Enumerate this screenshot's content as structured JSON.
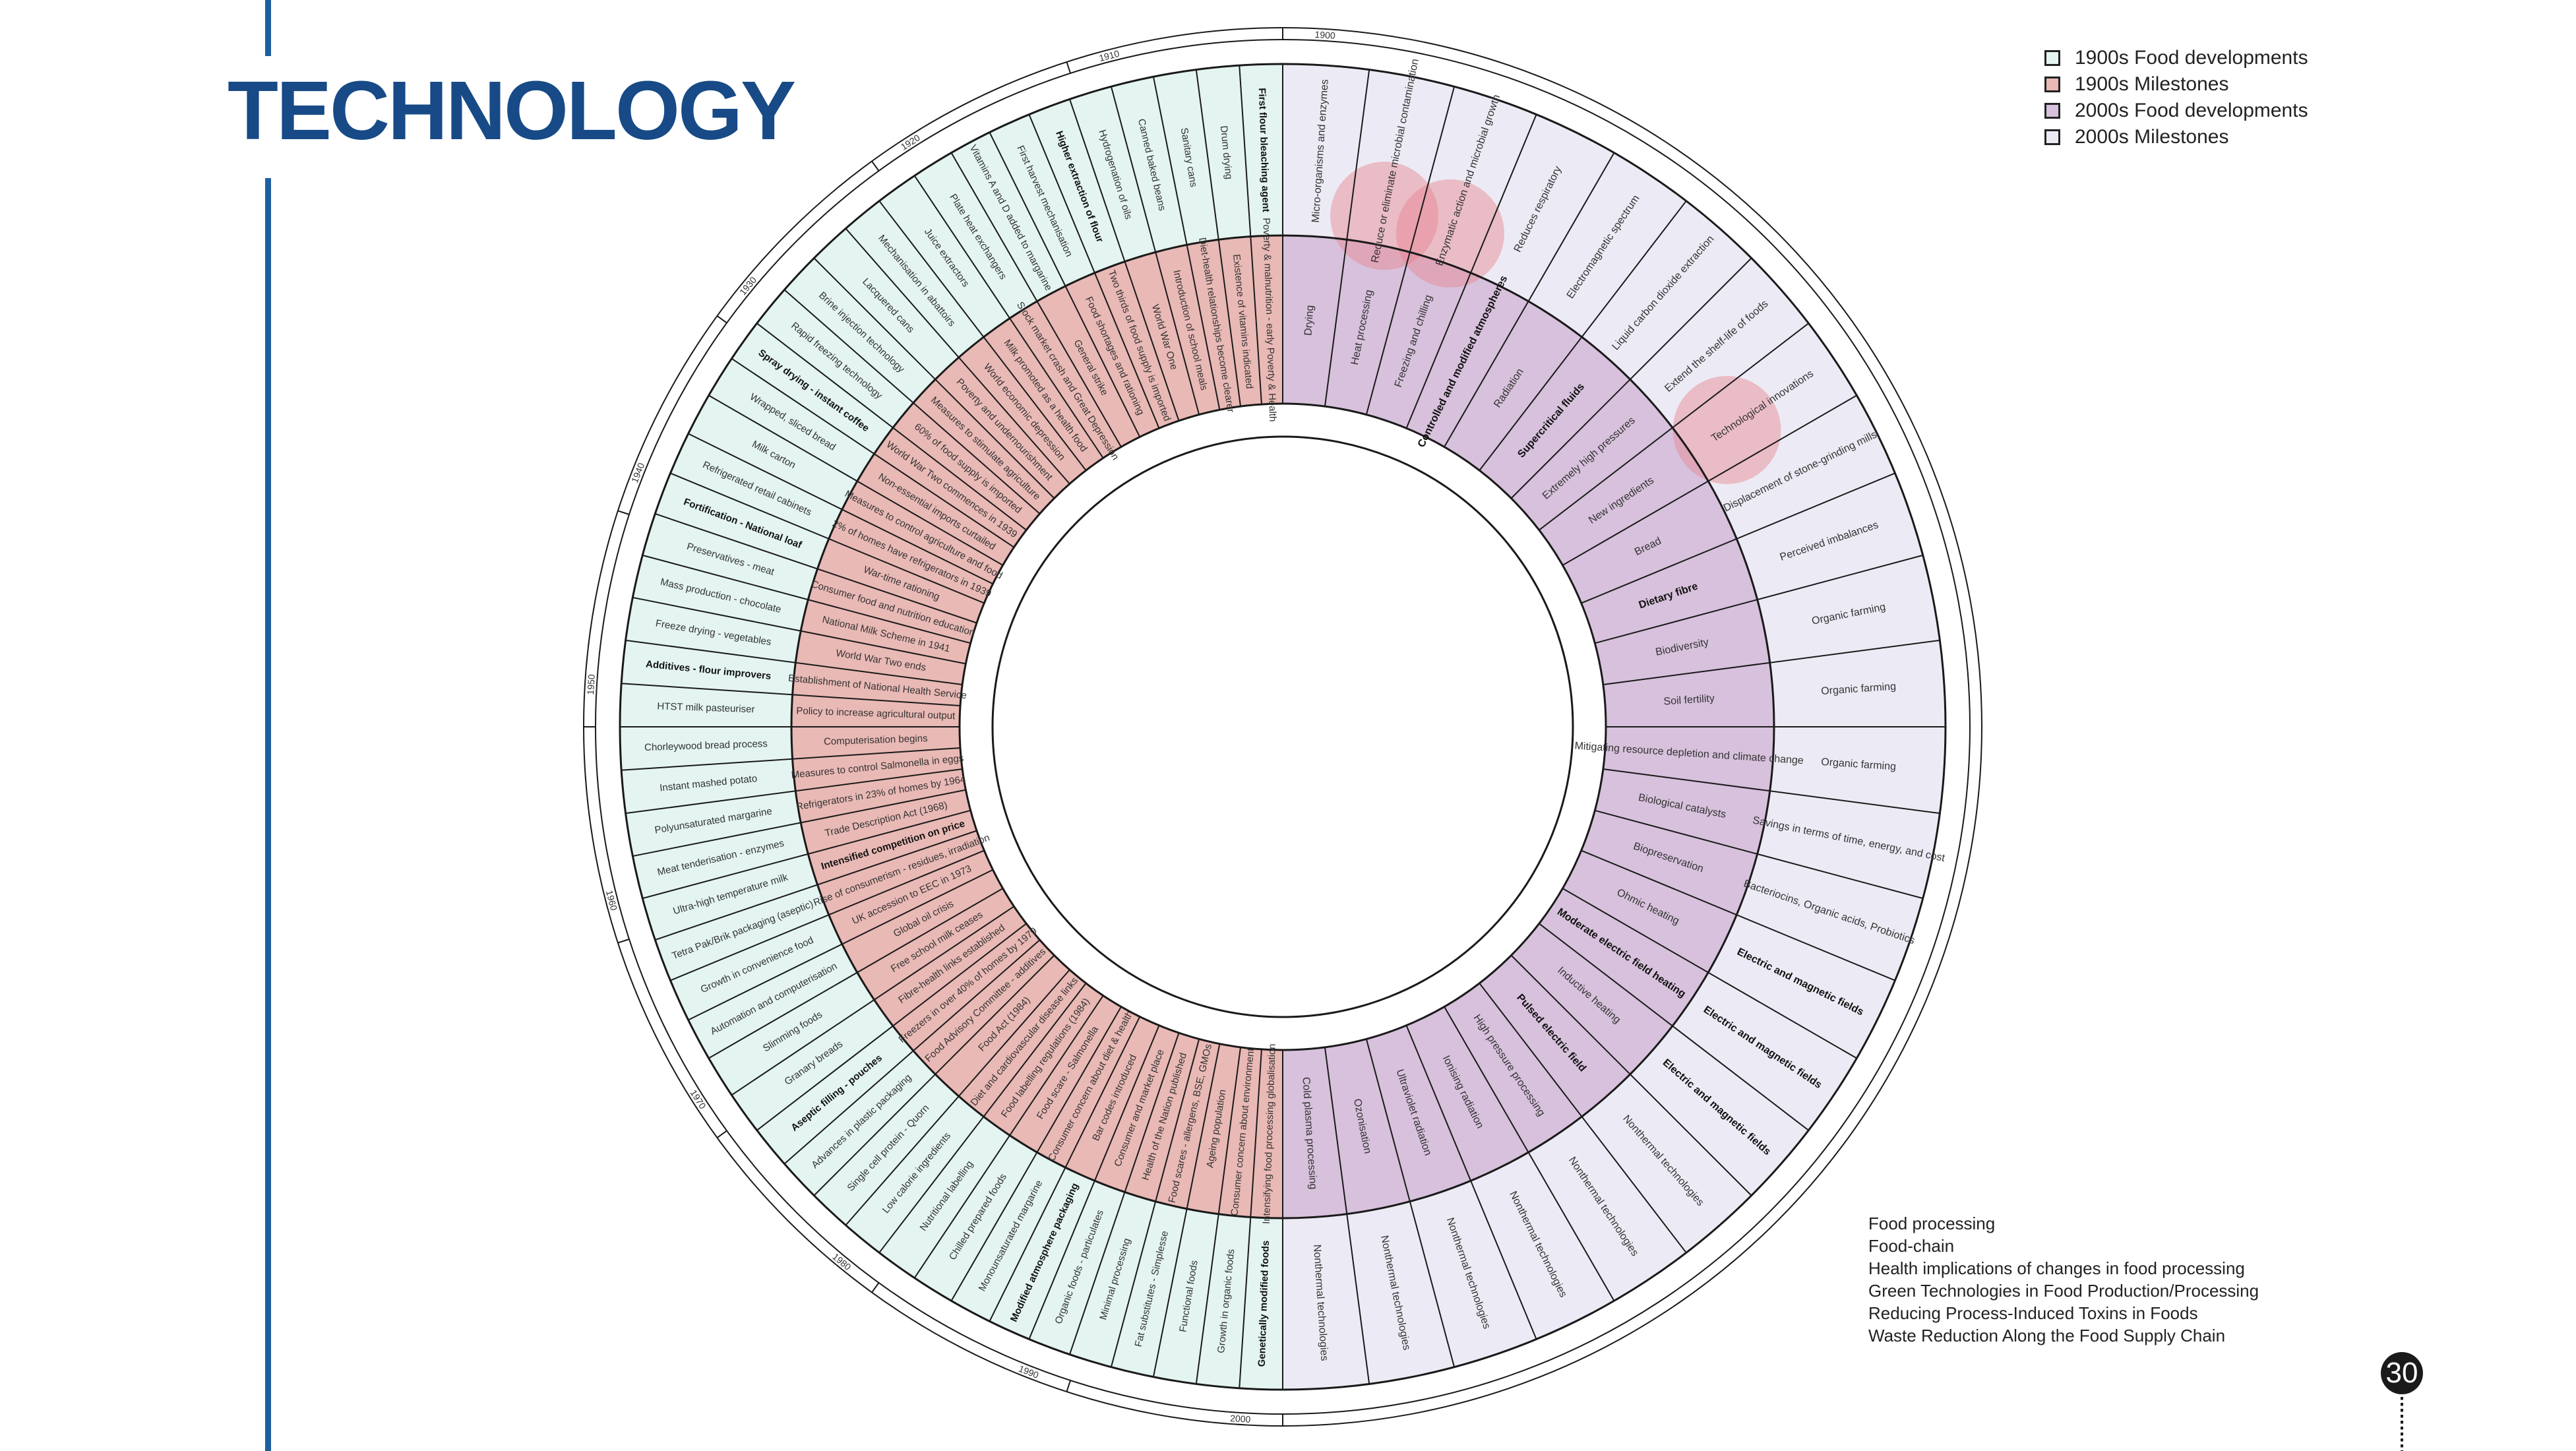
{
  "header": {
    "title": "TECHNOLOGY"
  },
  "legend": {
    "items": [
      {
        "label": "1900s Food developments",
        "color": "#e3f4f1"
      },
      {
        "label": "1900s Milestones",
        "color": "#e9b9b5"
      },
      {
        "label": "2000s Food developments",
        "color": "#d7c1dc"
      },
      {
        "label": "2000s Milestones",
        "color": "#ecebf5"
      }
    ]
  },
  "topics": [
    "Food processing",
    "Food-chain",
    "Health implications of changes in food processing",
    "Green Technologies in Food Production/Processing",
    "Reducing Process-Induced Toxins in Foods",
    "Waste Reduction Along the Food Supply Chain"
  ],
  "page_number": "30",
  "wheel": {
    "colors": {
      "dev1900": "#e3f4f1",
      "mile1900": "#e9b9b5",
      "dev2000": "#d7c1dc",
      "mile2000": "#ecebf5",
      "highlight": "#e8828f",
      "line": "#1a1a1a"
    },
    "decades": [
      "1900",
      "1910",
      "1920",
      "1930",
      "1940",
      "1950",
      "1960",
      "1970",
      "1980",
      "1990",
      "2000"
    ],
    "left_outer": [
      {
        "text": "First flour bleaching agent",
        "bold": true
      },
      {
        "text": "Drum drying"
      },
      {
        "text": "Sanitary cans"
      },
      {
        "text": "Canned baked beans"
      },
      {
        "text": "Hydrogenation of oils"
      },
      {
        "text": "Higher extraction of flour",
        "bold": true
      },
      {
        "text": "First harvest mechanisation"
      },
      {
        "text": "Vitamins A and D added to margarine"
      },
      {
        "text": "Plate heat exchangers"
      },
      {
        "text": "Juice extractors"
      },
      {
        "text": "Mechanisation in abattoirs"
      },
      {
        "text": "Lacquered cans"
      },
      {
        "text": "Brine injection technology"
      },
      {
        "text": "Rapid freezing technology"
      },
      {
        "text": "Spray drying - instant coffee",
        "bold": true
      },
      {
        "text": "Wrapped, sliced bread"
      },
      {
        "text": "Milk carton"
      },
      {
        "text": "Refrigerated retail cabinets"
      },
      {
        "text": "Fortification - National loaf",
        "bold": true
      },
      {
        "text": "Preservatives - meat"
      },
      {
        "text": "Mass production - chocolate"
      },
      {
        "text": "Freeze drying - vegetables"
      },
      {
        "text": "Additives - flour improvers",
        "bold": true
      },
      {
        "text": "HTST milk pasteuriser"
      },
      {
        "text": "Chorleywood bread process"
      },
      {
        "text": "Instant mashed potato"
      },
      {
        "text": "Polyunsaturated margarine"
      },
      {
        "text": "Meat tenderisation - enzymes"
      },
      {
        "text": "Ultra-high temperature milk"
      },
      {
        "text": "Tetra Pak/Brik packaging (aseptic)"
      },
      {
        "text": "Growth in convenience food"
      },
      {
        "text": "Automation and computerisation"
      },
      {
        "text": "Slimming foods"
      },
      {
        "text": "Granary breads"
      },
      {
        "text": "Aseptic filling - pouches",
        "bold": true
      },
      {
        "text": "Advances in plastic packaging"
      },
      {
        "text": "Single cell protein - Quorn"
      },
      {
        "text": "Low calorie ingredients"
      },
      {
        "text": "Nutritional labelling"
      },
      {
        "text": "Chilled prepared foods"
      },
      {
        "text": "Monounsaturated margarine"
      },
      {
        "text": "Modified atmosphere packaging",
        "bold": true
      },
      {
        "text": "Organic foods - particulates"
      },
      {
        "text": "Minimal processing"
      },
      {
        "text": "Fat substitutes - Simplesse"
      },
      {
        "text": "Functional foods"
      },
      {
        "text": "Growth in organic foods"
      },
      {
        "text": "Genetically modified foods",
        "bold": true
      }
    ],
    "left_inner": [
      {
        "text": "Poverty & malnutrition - early Poverty & Health"
      },
      {
        "text": "Existence of vitamins indicated"
      },
      {
        "text": "Diet-health relationships become clearer"
      },
      {
        "text": "Introduction of school meals"
      },
      {
        "text": "World War One"
      },
      {
        "text": "Two thirds of food supply is imported"
      },
      {
        "text": "Food shortages and rationing"
      },
      {
        "text": "General strike"
      },
      {
        "text": "Stock market crash and Great Depression"
      },
      {
        "text": "Milk promoted as a health food"
      },
      {
        "text": "World economic depression"
      },
      {
        "text": "Poverty and undernourishment"
      },
      {
        "text": "Measures to stimulate agriculture"
      },
      {
        "text": "60% of food supply is imported"
      },
      {
        "text": "World War Two commences in 1939"
      },
      {
        "text": "Non-essential imports curtailed"
      },
      {
        "text": "Measures to control agriculture and food"
      },
      {
        "text": "2% of homes have refrigerators in 1939"
      },
      {
        "text": "War-time rationing"
      },
      {
        "text": "Consumer food and nutrition education"
      },
      {
        "text": "National Milk Scheme in 1941"
      },
      {
        "text": "World War Two ends"
      },
      {
        "text": "Establishment of National Health Service"
      },
      {
        "text": "Policy to increase agricultural output"
      },
      {
        "text": "Computerisation begins"
      },
      {
        "text": "Measures to control Salmonella in eggs"
      },
      {
        "text": "Refrigerators in 23% of homes by 1964"
      },
      {
        "text": "Trade Description Act (1968)"
      },
      {
        "text": "Intensified competition on price",
        "bold": true
      },
      {
        "text": "Rise of consumerism - residues, irradiation"
      },
      {
        "text": "UK accession to EEC in 1973"
      },
      {
        "text": "Global oil crisis"
      },
      {
        "text": "Free school milk ceases"
      },
      {
        "text": "Fibre-health links established"
      },
      {
        "text": "Freezers in over 40% of homes by 1979"
      },
      {
        "text": "Food Advisory Committee - additives"
      },
      {
        "text": "Food Act (1984)"
      },
      {
        "text": "Diet and cardiovascular disease links"
      },
      {
        "text": "Food labelling regulations (1984)"
      },
      {
        "text": "Food scare - Salmonella"
      },
      {
        "text": "Consumer concern about diet & health"
      },
      {
        "text": "Bar codes introduced"
      },
      {
        "text": "Consumer and market place"
      },
      {
        "text": "Health of the Nation published"
      },
      {
        "text": "Food scares - allergens, BSE, GMOs"
      },
      {
        "text": "Ageing population"
      },
      {
        "text": "Consumer concern about environment"
      },
      {
        "text": "Intensifying food processing globalisation"
      }
    ],
    "right_inner": [
      {
        "text": "Drying"
      },
      {
        "text": "Heat processing"
      },
      {
        "text": "Freezing and chilling"
      },
      {
        "text": "Controlled and modified atmospheres",
        "bold": true
      },
      {
        "text": "Radiation"
      },
      {
        "text": "Supercritical fluids",
        "bold": true
      },
      {
        "text": "Extremely high pressures"
      },
      {
        "text": "New ingredients"
      },
      {
        "text": "Bread"
      },
      {
        "text": "Dietary fibre",
        "bold": true
      },
      {
        "text": "Biodiversity"
      },
      {
        "text": "Soil fertility"
      },
      {
        "text": "Mitigating resource depletion and climate change"
      },
      {
        "text": "Biological catalysts"
      },
      {
        "text": "Biopreservation"
      },
      {
        "text": "Ohmic heating"
      },
      {
        "text": "Moderate electric field heating",
        "bold": true
      },
      {
        "text": "Inductive heating"
      },
      {
        "text": "Pulsed electric field",
        "bold": true
      },
      {
        "text": "High pressure processing"
      },
      {
        "text": "Ionising radiation"
      },
      {
        "text": "Ultraviolet radiation"
      },
      {
        "text": "Ozonisation"
      },
      {
        "text": "Cold plasma processing"
      }
    ],
    "right_outer": [
      {
        "text": "Micro-organisms and enzymes"
      },
      {
        "text": "Reduce or eliminate microbial contamination"
      },
      {
        "text": "Enzymatic action and microbial growth"
      },
      {
        "text": "Reduces respiratory"
      },
      {
        "text": "Electromagnetic spectrum"
      },
      {
        "text": "Liquid carbon dioxide extraction"
      },
      {
        "text": "Extend the shelf-life of foods"
      },
      {
        "text": "Technological innovations"
      },
      {
        "text": "Displacement of stone-grinding mills"
      },
      {
        "text": "Perceived imbalances"
      },
      {
        "text": "Organic farming"
      },
      {
        "text": "Organic farming"
      },
      {
        "text": "Organic farming"
      },
      {
        "text": "Savings in terms of time, energy, and cost"
      },
      {
        "text": "Bacteriocins, Organic acids, Probiotics"
      },
      {
        "text": "Electric and magnetic fields",
        "bold": true
      },
      {
        "text": "Electric and magnetic fields",
        "bold": true
      },
      {
        "text": "Electric and magnetic fields",
        "bold": true
      },
      {
        "text": "Nonthermal technologies"
      },
      {
        "text": "Nonthermal technologies"
      },
      {
        "text": "Nonthermal technologies"
      },
      {
        "text": "Nonthermal technologies"
      },
      {
        "text": "Nonthermal technologies"
      },
      {
        "text": "Nonthermal technologies"
      }
    ],
    "highlights": [
      {
        "segment": 1
      },
      {
        "segment": 2
      },
      {
        "segment": 7
      }
    ]
  }
}
